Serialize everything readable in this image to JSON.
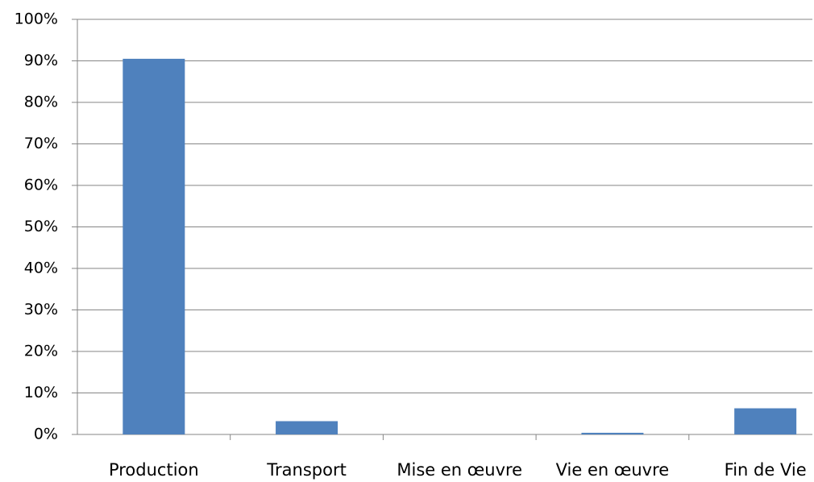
{
  "chart_data": {
    "type": "bar",
    "categories": [
      "Production",
      "Transport",
      "Mise en œuvre",
      "Vie en œuvre",
      "Fin de Vie"
    ],
    "values": [
      90.5,
      3.2,
      0,
      0.4,
      6.3
    ],
    "color": "#4f81bd",
    "ylim": [
      0,
      100
    ],
    "yticks": [
      {
        "value": 0,
        "label": "0%"
      },
      {
        "value": 10,
        "label": "10%"
      },
      {
        "value": 20,
        "label": "20%"
      },
      {
        "value": 30,
        "label": "30%"
      },
      {
        "value": 40,
        "label": "40%"
      },
      {
        "value": 50,
        "label": "50%"
      },
      {
        "value": 60,
        "label": "60%"
      },
      {
        "value": 70,
        "label": "70%"
      },
      {
        "value": 80,
        "label": "80%"
      },
      {
        "value": 90,
        "label": "90%"
      },
      {
        "value": 100,
        "label": "100%"
      }
    ],
    "grid": true
  }
}
